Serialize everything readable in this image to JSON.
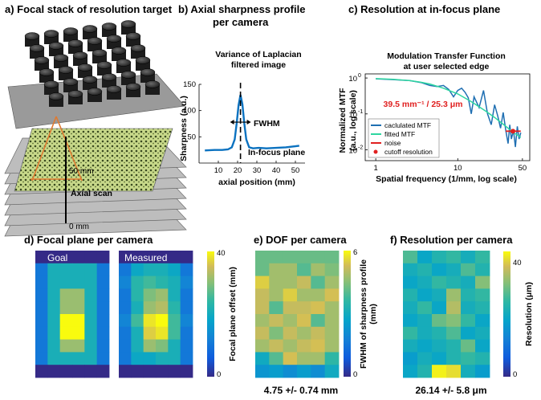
{
  "panels": {
    "a": {
      "title": "a) Focal stack of resolution target",
      "scan_top": "50 mm",
      "scan_label": "Axial scan",
      "scan_bottom": "0 mm"
    },
    "b": {
      "title_line1": "b) Axial sharpness profile",
      "title_line2": "per camera",
      "subtitle_line1": "Variance of Laplacian",
      "subtitle_line2": "filtered image"
    },
    "c": {
      "title": "c) Resolution at in-focus plane",
      "subtitle_line1": "Modulation Transfer Function",
      "subtitle_line2": "at user selected edge"
    },
    "d": {
      "title": "d) Focal plane per camera",
      "goal_label": "Goal",
      "measured_label": "Measured",
      "colorbar_label": "Focal plane offset (mm)",
      "cbar_min": "0",
      "cbar_max": "40"
    },
    "e": {
      "title": "e) DOF per camera",
      "colorbar_label_line1": "FWHM of sharpness profile",
      "colorbar_label_line2": "(mm)",
      "cbar_min": "0",
      "cbar_max": "6",
      "summary": "4.75 +/- 0.74 mm"
    },
    "f": {
      "title": "f) Resolution per camera",
      "colorbar_label": "Resolution (μm)",
      "cbar_min": "0",
      "cbar_max": "40",
      "summary": "26.14 +/- 5.8 μm"
    }
  },
  "chart_data": [
    {
      "type": "line",
      "title": "Variance of Laplacian filtered image",
      "xlabel": "axial position (mm)",
      "ylabel": "Sharpness (a.u.)",
      "xlim": [
        0,
        55
      ],
      "ylim": [
        0,
        150
      ],
      "xticks": [
        "10",
        "20",
        "30",
        "40",
        "50"
      ],
      "yticks": [
        "50",
        "100",
        "150"
      ],
      "x": [
        3,
        8,
        12,
        15,
        17,
        18.5,
        19.5,
        20.5,
        21.5,
        22.5,
        23.5,
        24.5,
        26,
        28,
        31,
        35,
        40,
        45,
        50,
        52
      ],
      "values": [
        24,
        25,
        25,
        26,
        30,
        45,
        75,
        110,
        130,
        112,
        75,
        45,
        30,
        28,
        29,
        28,
        29,
        30,
        32,
        33
      ],
      "peak_x": 21.5,
      "annotations": {
        "fwhm": "FWHM",
        "in_focus": "In-focus plane"
      }
    },
    {
      "type": "line",
      "title": "Modulation Transfer Function at user selected edge",
      "xlabel": "Spatial frequency (1/mm, log scale)",
      "ylabel_line1": "Normalized MTF",
      "ylabel_line2": "(a.u., log scale)",
      "xscale": "log",
      "yscale": "log",
      "xlim": [
        1,
        60
      ],
      "ylim": [
        0.005,
        1.3
      ],
      "xticks": [
        "1",
        "10",
        "50"
      ],
      "yticks": [
        "10",
        "10",
        "10"
      ],
      "ytick_exponents": [
        "0",
        "-1",
        "-2"
      ],
      "series": [
        {
          "name": "caclulated MTF",
          "color": "#1f6fb2",
          "x": [
            1.3,
            2,
            3,
            4,
            5,
            6,
            7,
            8,
            9,
            10,
            11,
            12,
            13,
            14,
            15,
            17,
            19,
            21,
            23,
            25,
            27,
            29,
            31,
            33,
            35,
            36.5,
            38,
            40,
            42,
            44,
            46,
            48
          ],
          "values": [
            0.95,
            0.9,
            0.85,
            0.75,
            0.62,
            0.58,
            0.62,
            0.48,
            0.3,
            0.45,
            0.52,
            0.4,
            0.28,
            0.1,
            0.3,
            0.15,
            0.45,
            0.1,
            0.05,
            0.18,
            0.09,
            0.04,
            0.11,
            0.035,
            0.015,
            0.05,
            0.02,
            0.035,
            0.012,
            0.045,
            0.02,
            0.03
          ]
        },
        {
          "name": "fitted MTF",
          "color": "#2ed6a0",
          "x": [
            1.3,
            2,
            3,
            4,
            5,
            7,
            10,
            14,
            20,
            25,
            30,
            35,
            40,
            45,
            48
          ],
          "values": [
            0.96,
            0.92,
            0.85,
            0.76,
            0.68,
            0.52,
            0.36,
            0.22,
            0.12,
            0.08,
            0.055,
            0.04,
            0.03,
            0.025,
            0.022
          ]
        },
        {
          "name": "noise",
          "color": "#e02020",
          "x": [
            33,
            48
          ],
          "values": [
            0.033,
            0.033
          ]
        },
        {
          "name": "cutoff resolution",
          "color": "#e02020",
          "x": [
            39.5
          ],
          "values": [
            0.033
          ]
        }
      ],
      "annotation": "39.5 mm⁻¹ / 25.3 μm"
    },
    {
      "type": "heatmap",
      "title": "Focal plane per camera",
      "cbar": [
        0,
        40
      ],
      "goal": [
        [
          0,
          0,
          0,
          0,
          0,
          0
        ],
        [
          10,
          20,
          20,
          20,
          20,
          10
        ],
        [
          10,
          20,
          20,
          20,
          20,
          10
        ],
        [
          10,
          20,
          30,
          30,
          20,
          10
        ],
        [
          10,
          20,
          30,
          30,
          20,
          10
        ],
        [
          10,
          20,
          40,
          40,
          20,
          10
        ],
        [
          10,
          20,
          40,
          40,
          20,
          10
        ],
        [
          10,
          20,
          30,
          30,
          20,
          10
        ],
        [
          10,
          20,
          20,
          20,
          20,
          10
        ],
        [
          0,
          0,
          0,
          0,
          0,
          0
        ]
      ],
      "measured": [
        [
          0,
          0,
          0,
          0,
          0,
          0
        ],
        [
          10,
          18,
          20,
          20,
          18,
          10
        ],
        [
          12,
          22,
          24,
          22,
          20,
          12
        ],
        [
          10,
          22,
          28,
          30,
          20,
          10
        ],
        [
          10,
          20,
          30,
          32,
          22,
          10
        ],
        [
          12,
          24,
          38,
          40,
          24,
          12
        ],
        [
          10,
          20,
          36,
          38,
          24,
          10
        ],
        [
          10,
          20,
          30,
          28,
          20,
          10
        ],
        [
          10,
          18,
          18,
          20,
          20,
          10
        ],
        [
          0,
          0,
          0,
          0,
          0,
          0
        ]
      ]
    },
    {
      "type": "heatmap",
      "title": "DOF per camera",
      "cbar": [
        0,
        6
      ],
      "values": [
        [
          4,
          4,
          4,
          4,
          4,
          4
        ],
        [
          4,
          4.6,
          4.6,
          3.8,
          4.6,
          4.2
        ],
        [
          5.4,
          4.6,
          4.6,
          5.0,
          3.8,
          4.6
        ],
        [
          5.0,
          4.6,
          5.4,
          4.6,
          4.6,
          5.2
        ],
        [
          5.0,
          3.8,
          5.0,
          5.0,
          5.2,
          4.6
        ],
        [
          4.6,
          5.0,
          4.6,
          5.2,
          3.8,
          4.6
        ],
        [
          5.0,
          4.2,
          5.0,
          4.6,
          5.0,
          4.6
        ],
        [
          4.6,
          5.0,
          4.6,
          5.0,
          5.2,
          4.6
        ],
        [
          2.8,
          3.8,
          5.2,
          4.6,
          4.6,
          3.4
        ],
        [
          2.2,
          2.4,
          2.0,
          2.4,
          2.0,
          2.8
        ]
      ]
    },
    {
      "type": "heatmap",
      "title": "Resolution per camera",
      "cbar": [
        0,
        45
      ],
      "values": [
        [
          28,
          20,
          24,
          26,
          22,
          26
        ],
        [
          22,
          24,
          20,
          22,
          28,
          24
        ],
        [
          20,
          22,
          26,
          24,
          22,
          32
        ],
        [
          24,
          20,
          22,
          34,
          24,
          26
        ],
        [
          22,
          26,
          20,
          36,
          22,
          24
        ],
        [
          20,
          22,
          30,
          32,
          26,
          20
        ],
        [
          26,
          22,
          24,
          28,
          20,
          22
        ],
        [
          22,
          20,
          22,
          24,
          30,
          20
        ],
        [
          18,
          22,
          20,
          24,
          26,
          24
        ],
        [
          20,
          24,
          44,
          42,
          22,
          18
        ]
      ]
    }
  ]
}
